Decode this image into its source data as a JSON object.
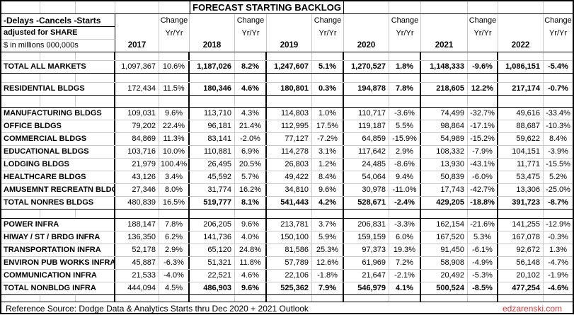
{
  "title": "FORECAST STARTING BACKLOG",
  "header": {
    "line1": "-Delays -Cancels -Starts",
    "line2": "adjusted for SHARE",
    "line3": "$ in millions 000,000s",
    "change_label": "Change",
    "yryr_label": "Yr/Yr",
    "years": [
      "2017",
      "2018",
      "2019",
      "2020",
      "2021",
      "2022"
    ]
  },
  "sections": [
    {
      "rows": [
        {
          "label": "TOTAL ALL MARKETS",
          "total": true,
          "values": [
            [
              "1,097,367",
              "10.6%"
            ],
            [
              "1,187,026",
              "8.2%"
            ],
            [
              "1,247,607",
              "5.1%"
            ],
            [
              "1,270,527",
              "1.8%"
            ],
            [
              "1,148,333",
              "-9.6%"
            ],
            [
              "1,086,151",
              "-5.4%"
            ]
          ]
        }
      ]
    },
    {
      "rows": [
        {
          "label": "RESIDENTIAL BLDGS",
          "total": true,
          "values": [
            [
              "172,434",
              "11.5%"
            ],
            [
              "180,346",
              "4.6%"
            ],
            [
              "180,801",
              "0.3%"
            ],
            [
              "194,878",
              "7.8%"
            ],
            [
              "218,605",
              "12.2%"
            ],
            [
              "217,174",
              "-0.7%"
            ]
          ]
        }
      ]
    },
    {
      "rows": [
        {
          "label": "MANUFACTURING BLDGS",
          "total": false,
          "values": [
            [
              "109,031",
              "9.6%"
            ],
            [
              "113,710",
              "4.3%"
            ],
            [
              "114,803",
              "1.0%"
            ],
            [
              "110,717",
              "-3.6%"
            ],
            [
              "74,499",
              "-32.7%"
            ],
            [
              "49,616",
              "-33.4%"
            ]
          ]
        },
        {
          "label": "OFFICE BLDGS",
          "total": false,
          "values": [
            [
              "79,202",
              "22.4%"
            ],
            [
              "96,181",
              "21.4%"
            ],
            [
              "112,995",
              "17.5%"
            ],
            [
              "119,187",
              "5.5%"
            ],
            [
              "98,864",
              "-17.1%"
            ],
            [
              "88,687",
              "-10.3%"
            ]
          ]
        },
        {
          "label": "COMMERCIAL BLDGS",
          "total": false,
          "values": [
            [
              "84,869",
              "11.3%"
            ],
            [
              "83,141",
              "-2.0%"
            ],
            [
              "77,127",
              "-7.2%"
            ],
            [
              "64,859",
              "-15.9%"
            ],
            [
              "54,989",
              "-15.2%"
            ],
            [
              "59,622",
              "8.4%"
            ]
          ]
        },
        {
          "label": "EDUCATIONAL BLDGS",
          "total": false,
          "values": [
            [
              "103,716",
              "10.0%"
            ],
            [
              "110,881",
              "6.9%"
            ],
            [
              "114,278",
              "3.1%"
            ],
            [
              "117,642",
              "2.9%"
            ],
            [
              "108,332",
              "-7.9%"
            ],
            [
              "104,151",
              "-3.9%"
            ]
          ]
        },
        {
          "label": "LODGING BLDGS",
          "total": false,
          "values": [
            [
              "21,979",
              "100.4%"
            ],
            [
              "26,495",
              "20.5%"
            ],
            [
              "26,803",
              "1.2%"
            ],
            [
              "24,485",
              "-8.6%"
            ],
            [
              "13,930",
              "-43.1%"
            ],
            [
              "11,771",
              "-15.5%"
            ]
          ]
        },
        {
          "label": "HEALTHCARE BLDGS",
          "total": false,
          "values": [
            [
              "43,126",
              "3.4%"
            ],
            [
              "45,592",
              "5.7%"
            ],
            [
              "49,422",
              "8.4%"
            ],
            [
              "54,064",
              "9.4%"
            ],
            [
              "50,839",
              "-6.0%"
            ],
            [
              "53,475",
              "5.2%"
            ]
          ]
        },
        {
          "label": "AMUSEMNT RECREATN BLDGS",
          "total": false,
          "values": [
            [
              "27,346",
              "8.0%"
            ],
            [
              "31,774",
              "16.2%"
            ],
            [
              "34,810",
              "9.6%"
            ],
            [
              "30,978",
              "-11.0%"
            ],
            [
              "17,743",
              "-42.7%"
            ],
            [
              "13,306",
              "-25.0%"
            ]
          ]
        },
        {
          "label": "TOTAL NONRES BLDGS",
          "total": true,
          "values": [
            [
              "480,839",
              "16.5%"
            ],
            [
              "519,777",
              "8.1%"
            ],
            [
              "541,443",
              "4.2%"
            ],
            [
              "528,671",
              "-2.4%"
            ],
            [
              "429,205",
              "-18.8%"
            ],
            [
              "391,723",
              "-8.7%"
            ]
          ]
        }
      ]
    },
    {
      "rows": [
        {
          "label": "POWER INFRA",
          "total": false,
          "values": [
            [
              "188,147",
              "7.8%"
            ],
            [
              "206,205",
              "9.6%"
            ],
            [
              "213,781",
              "3.7%"
            ],
            [
              "206,831",
              "-3.3%"
            ],
            [
              "162,154",
              "-21.6%"
            ],
            [
              "141,255",
              "-12.9%"
            ]
          ]
        },
        {
          "label": "HIWAY / ST / BRDG INFRA",
          "total": false,
          "values": [
            [
              "136,350",
              "6.2%"
            ],
            [
              "141,736",
              "4.0%"
            ],
            [
              "150,100",
              "5.9%"
            ],
            [
              "159,159",
              "6.0%"
            ],
            [
              "167,520",
              "5.3%"
            ],
            [
              "167,078",
              "-0.3%"
            ]
          ]
        },
        {
          "label": "TRANSPORTATION INFRA",
          "total": false,
          "values": [
            [
              "52,178",
              "2.9%"
            ],
            [
              "65,120",
              "24.8%"
            ],
            [
              "81,586",
              "25.3%"
            ],
            [
              "97,373",
              "19.3%"
            ],
            [
              "91,450",
              "-6.1%"
            ],
            [
              "92,672",
              "1.3%"
            ]
          ]
        },
        {
          "label": "ENVIRON PUB WORKS INFRA",
          "total": false,
          "values": [
            [
              "45,887",
              "-6.3%"
            ],
            [
              "51,321",
              "11.8%"
            ],
            [
              "57,789",
              "12.6%"
            ],
            [
              "61,969",
              "7.2%"
            ],
            [
              "58,908",
              "-4.9%"
            ],
            [
              "56,148",
              "-4.7%"
            ]
          ]
        },
        {
          "label": "COMMUNICATION INFRA",
          "total": false,
          "values": [
            [
              "21,533",
              "-4.0%"
            ],
            [
              "22,521",
              "4.6%"
            ],
            [
              "22,106",
              "-1.8%"
            ],
            [
              "21,647",
              "-2.1%"
            ],
            [
              "20,492",
              "-5.3%"
            ],
            [
              "20,102",
              "-1.9%"
            ]
          ]
        },
        {
          "label": "TOTAL NONBLDG INFRA",
          "total": true,
          "values": [
            [
              "444,094",
              "4.5%"
            ],
            [
              "486,903",
              "9.6%"
            ],
            [
              "525,362",
              "7.9%"
            ],
            [
              "546,979",
              "4.1%"
            ],
            [
              "500,524",
              "-8.5%"
            ],
            [
              "477,254",
              "-4.6%"
            ]
          ]
        }
      ]
    }
  ],
  "footer": {
    "source": "Reference Source: Dodge Data & Analytics Starts thru Dec 2020 + 2021 Outlook",
    "site": "edzarenski.com"
  },
  "colors": {
    "site_red": "#d93a3a",
    "gridline": "#c9c9c9",
    "border_black": "#000000"
  }
}
